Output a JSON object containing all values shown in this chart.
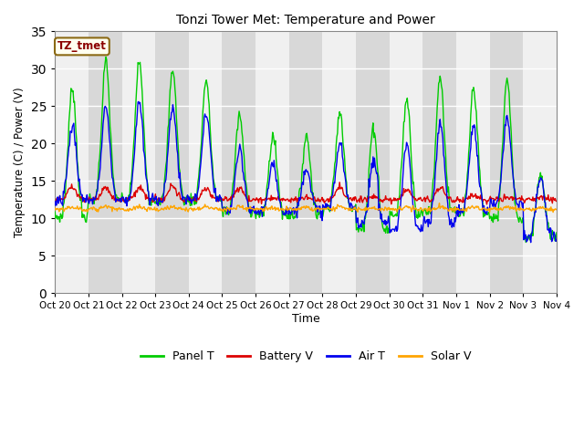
{
  "title": "Tonzi Tower Met: Temperature and Power",
  "xlabel": "Time",
  "ylabel": "Temperature (C) / Power (V)",
  "ylim": [
    0,
    35
  ],
  "yticks": [
    0,
    5,
    10,
    15,
    20,
    25,
    30,
    35
  ],
  "xlabels": [
    "Oct 20",
    "Oct 21",
    "Oct 22",
    "Oct 23",
    "Oct 24",
    "Oct 25",
    "Oct 26",
    "Oct 27",
    "Oct 28",
    "Oct 29",
    "Oct 30",
    "Oct 31",
    "Nov 1",
    "Nov 2",
    "Nov 3",
    "Nov 4"
  ],
  "annotation_text": "TZ_tmet",
  "legend": [
    "Panel T",
    "Battery V",
    "Air T",
    "Solar V"
  ],
  "colors": {
    "panel_t": "#00CC00",
    "battery_v": "#DD0000",
    "air_t": "#0000EE",
    "solar_v": "#FFA500"
  },
  "fig_bg": "#FFFFFF",
  "plot_bg_dark": "#D8D8D8",
  "plot_bg_light": "#F0F0F0",
  "grid_color": "#FFFFFF"
}
